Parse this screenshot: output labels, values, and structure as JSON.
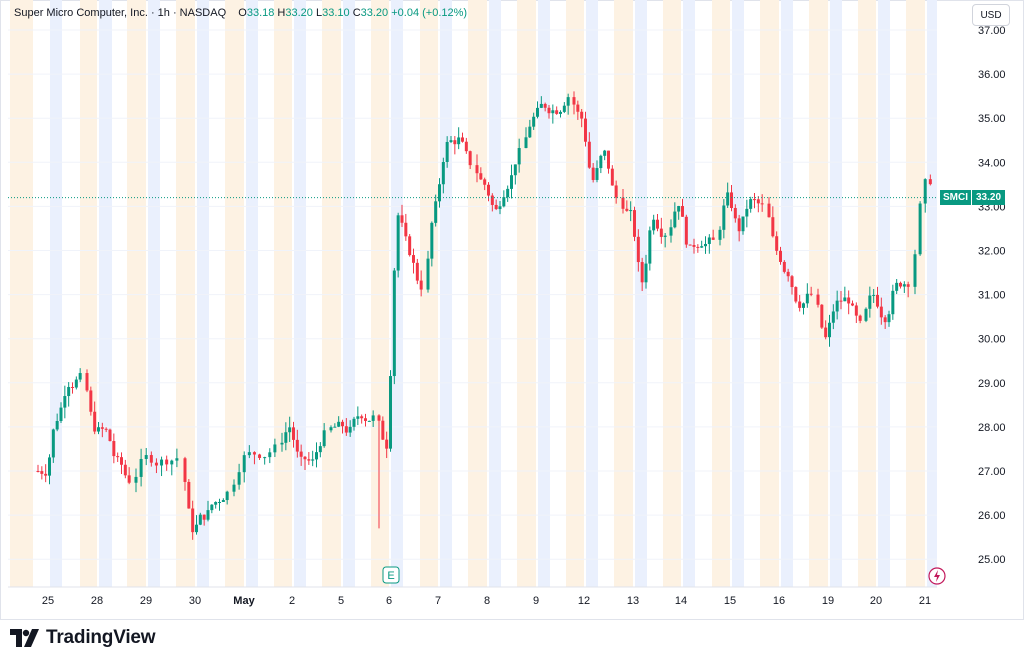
{
  "header": {
    "symbol_line": "Super Micro Computer, Inc. · 1h · NASDAQ",
    "o_label": "O",
    "o_value": "33.18",
    "h_label": "H",
    "h_value": "33.20",
    "l_label": "L",
    "l_value": "33.10",
    "c_label": "C",
    "c_value": "33.20",
    "change": "+0.04 (+0.12%)"
  },
  "currency": "USD",
  "price_label": {
    "symbol": "SMCI",
    "value": "33.20"
  },
  "brand": "TradingView",
  "colors": {
    "up": "#089981",
    "down": "#f23645",
    "session_pre": "#fdf2e3",
    "session_post": "#eaf0fd",
    "grid": "#f0f3fa"
  },
  "chart_data": {
    "type": "candlestick",
    "interval": "1h",
    "y_ticks": [
      "37.00",
      "36.00",
      "35.00",
      "34.00",
      "33.00",
      "32.00",
      "31.00",
      "30.00",
      "29.00",
      "28.00",
      "27.00",
      "26.00",
      "25.00"
    ],
    "ylim": [
      24.5,
      37.2
    ],
    "x_ticks": [
      "25",
      "28",
      "29",
      "30",
      "May",
      "2",
      "5",
      "6",
      "7",
      "8",
      "9",
      "12",
      "13",
      "14",
      "15",
      "16",
      "19",
      "20",
      "21"
    ],
    "last_price": 33.2,
    "markers": [
      {
        "type": "earnings",
        "label": "E",
        "date": "6"
      },
      {
        "type": "flash",
        "date": "21"
      }
    ],
    "close_path": [
      [
        "25",
        27.0
      ],
      [
        "25",
        28.2
      ],
      [
        "25",
        29.0
      ],
      [
        "25",
        29.1
      ],
      [
        "28",
        28.0
      ],
      [
        "28",
        27.9
      ],
      [
        "28",
        27.2
      ],
      [
        "28",
        26.8
      ],
      [
        "29",
        27.3
      ],
      [
        "29",
        27.2
      ],
      [
        "29",
        27.3
      ],
      [
        "30",
        25.7
      ],
      [
        "30",
        26.0
      ],
      [
        "30",
        26.3
      ],
      [
        "30",
        26.5
      ],
      [
        "May",
        27.3
      ],
      [
        "May",
        27.4
      ],
      [
        "May",
        27.5
      ],
      [
        "2",
        28.0
      ],
      [
        "2",
        27.2
      ],
      [
        "2",
        27.2
      ],
      [
        "2",
        27.8
      ],
      [
        "5",
        28.0
      ],
      [
        "5",
        27.9
      ],
      [
        "5",
        28.3
      ],
      [
        "5",
        28.2
      ],
      [
        "6",
        27.6
      ],
      [
        "6",
        32.8
      ],
      [
        "6",
        32.0
      ],
      [
        "6",
        31.2
      ],
      [
        "7",
        33.0
      ],
      [
        "7",
        34.4
      ],
      [
        "7",
        34.5
      ],
      [
        "7",
        34.0
      ],
      [
        "8",
        33.5
      ],
      [
        "8",
        32.9
      ],
      [
        "8",
        33.5
      ],
      [
        "8",
        34.2
      ],
      [
        "9",
        35.0
      ],
      [
        "9",
        35.3
      ],
      [
        "9",
        35.2
      ],
      [
        "9",
        35.5
      ],
      [
        "12",
        35.0
      ],
      [
        "12",
        33.6
      ],
      [
        "12",
        34.2
      ],
      [
        "12",
        33.2
      ],
      [
        "13",
        32.8
      ],
      [
        "13",
        31.3
      ],
      [
        "13",
        32.8
      ],
      [
        "13",
        32.4
      ],
      [
        "14",
        33.1
      ],
      [
        "14",
        32.0
      ],
      [
        "14",
        32.2
      ],
      [
        "14",
        32.2
      ],
      [
        "15",
        33.2
      ],
      [
        "15",
        32.5
      ],
      [
        "15",
        33.1
      ],
      [
        "15",
        33.0
      ],
      [
        "16",
        32.0
      ],
      [
        "16",
        31.5
      ],
      [
        "16",
        30.8
      ],
      [
        "16",
        31.0
      ],
      [
        "19",
        30.0
      ],
      [
        "19",
        30.8
      ],
      [
        "19",
        30.9
      ],
      [
        "19",
        30.3
      ],
      [
        "20",
        31.0
      ],
      [
        "20",
        30.5
      ],
      [
        "20",
        31.2
      ],
      [
        "20",
        31.3
      ],
      [
        "21",
        33.5
      ],
      [
        "21",
        33.6
      ],
      [
        "21",
        33.2
      ]
    ]
  }
}
